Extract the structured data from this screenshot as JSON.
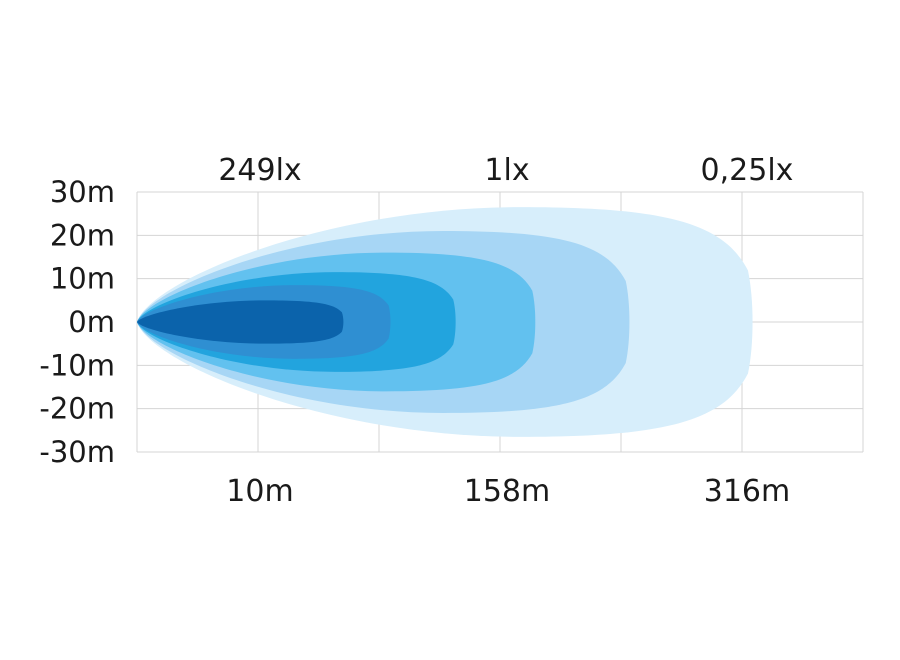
{
  "chart_data": {
    "type": "area",
    "title": "",
    "xlabel": "",
    "ylabel": "",
    "y_ticks": [
      "30m",
      "20m",
      "10m",
      "0m",
      "-10m",
      "-20m",
      "-30m"
    ],
    "ylim": [
      -30,
      30
    ],
    "grid": true,
    "top_labels": [
      "249lx",
      "1lx",
      "0,25lx"
    ],
    "bottom_labels": [
      "10m",
      "158m",
      "316m"
    ],
    "zones": [
      {
        "color": "#d7eefb",
        "reach": 0.85,
        "half_width": 26.5
      },
      {
        "color": "#a7d6f5",
        "reach": 0.68,
        "half_width": 21
      },
      {
        "color": "#62c1ef",
        "reach": 0.55,
        "half_width": 16
      },
      {
        "color": "#22a4de",
        "reach": 0.44,
        "half_width": 11.5
      },
      {
        "color": "#2f8fd2",
        "reach": 0.35,
        "half_width": 8.5
      },
      {
        "color": "#0b63ab",
        "reach": 0.285,
        "half_width": 5
      }
    ]
  }
}
